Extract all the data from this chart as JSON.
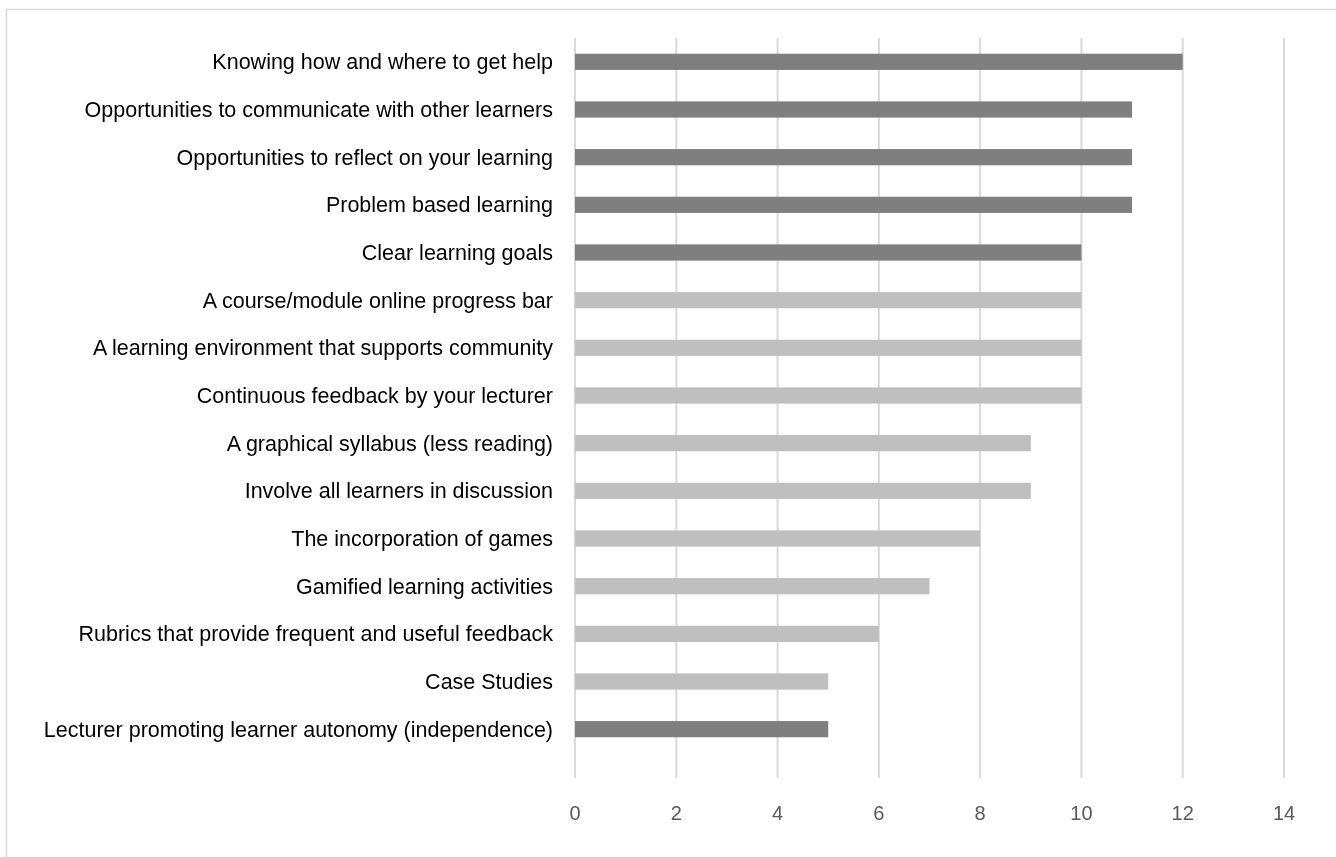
{
  "chart_data": {
    "type": "bar",
    "orientation": "horizontal",
    "categories": [
      "Knowing how and where to get help",
      "Opportunities to communicate with other learners",
      "Opportunities to reflect on your learning",
      "Problem based learning",
      "Clear learning goals",
      "A course/module online progress bar",
      "A learning environment that supports community",
      "Continuous feedback by your lecturer",
      "A graphical syllabus (less reading)",
      "Involve all learners in discussion",
      "The incorporation of games",
      "Gamified learning activities",
      "Rubrics that provide frequent and useful feedback",
      "Case Studies",
      "Lecturer promoting learner autonomy (independence)"
    ],
    "values": [
      12,
      11,
      11,
      11,
      10,
      10,
      10,
      10,
      9,
      9,
      8,
      7,
      6,
      5,
      5
    ],
    "colors": [
      "#7f7f7f",
      "#7f7f7f",
      "#7f7f7f",
      "#7f7f7f",
      "#7f7f7f",
      "#bfbfbf",
      "#bfbfbf",
      "#bfbfbf",
      "#bfbfbf",
      "#bfbfbf",
      "#bfbfbf",
      "#bfbfbf",
      "#bfbfbf",
      "#bfbfbf",
      "#7f7f7f"
    ],
    "xlim": [
      0,
      14
    ],
    "xticks": [
      0,
      2,
      4,
      6,
      8,
      10,
      12,
      14
    ],
    "grid": "x"
  }
}
